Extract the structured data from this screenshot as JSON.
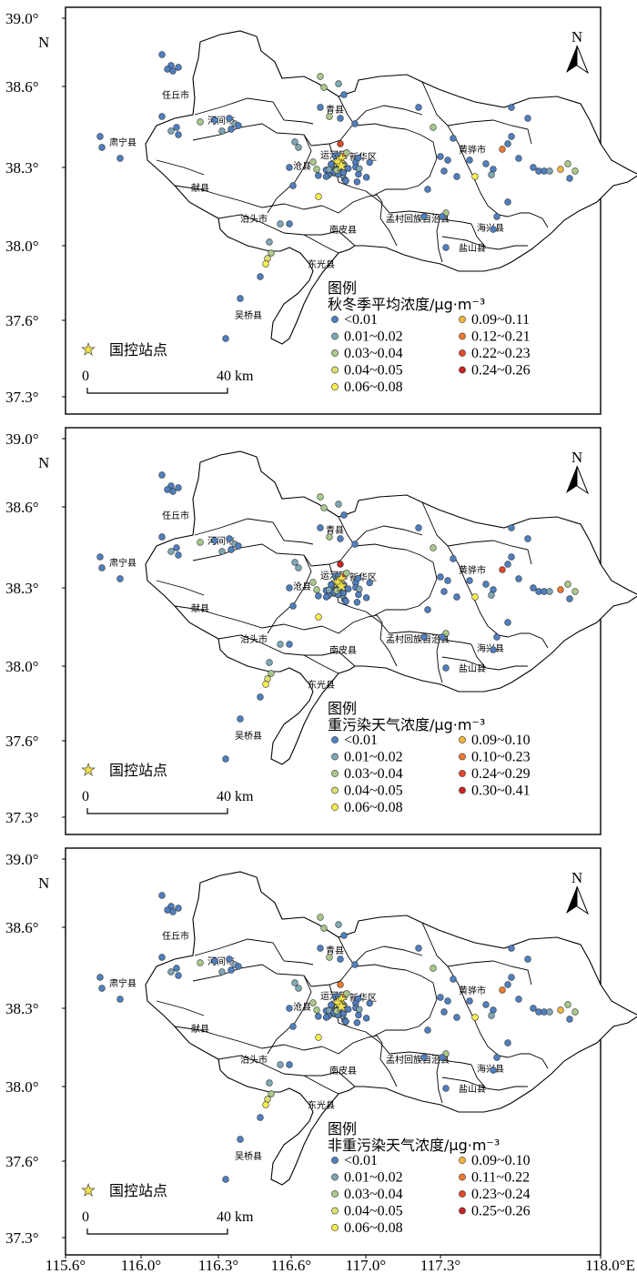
{
  "map": {
    "x_ticks": [
      "115.6°",
      "116.0°",
      "116.3°",
      "116.6°",
      "117.0°",
      "117.3°",
      "118.0°E"
    ],
    "y_ticks": [
      "39.0°",
      "38.6°",
      "38.3°",
      "38.0°",
      "37.6°",
      "37.3°"
    ],
    "north_label": "N",
    "n_axis_label": "N",
    "scale_label": "40 km",
    "scale_zero": "0",
    "station_label": "国控站点",
    "county_labels": [
      "任丘市",
      "河间市",
      "肃宁县",
      "献县",
      "泊头市",
      "东光县",
      "吴桥县",
      "青县",
      "沧县",
      "运河区",
      "新华区",
      "南皮县",
      "孟村回族自治县",
      "黄骅市",
      "海兴县",
      "盐山县"
    ]
  },
  "panels": [
    {
      "legend_title": "图例",
      "legend_subtitle": "秋冬季平均浓度/μg·m⁻³",
      "legend": [
        {
          "label": "<0.01",
          "color": "#4f7fbf"
        },
        {
          "label": "0.01~0.02",
          "color": "#7fa7b5"
        },
        {
          "label": "0.03~0.04",
          "color": "#a9c88b"
        },
        {
          "label": "0.04~0.05",
          "color": "#dcdf6e"
        },
        {
          "label": "0.06~0.08",
          "color": "#f8ee4d"
        },
        {
          "label": "0.09~0.11",
          "color": "#f6b53c"
        },
        {
          "label": "0.12~0.21",
          "color": "#ee7a2e"
        },
        {
          "label": "0.22~0.23",
          "color": "#e1492a"
        },
        {
          "label": "0.24~0.26",
          "color": "#c92323"
        }
      ]
    },
    {
      "legend_title": "图例",
      "legend_subtitle": "重污染天气浓度/μg·m⁻³",
      "legend": [
        {
          "label": "<0.01",
          "color": "#4f7fbf"
        },
        {
          "label": "0.01~0.02",
          "color": "#7fa7b5"
        },
        {
          "label": "0.03~0.04",
          "color": "#a9c88b"
        },
        {
          "label": "0.04~0.05",
          "color": "#dcdf6e"
        },
        {
          "label": "0.06~0.08",
          "color": "#f8ee4d"
        },
        {
          "label": "0.09~0.10",
          "color": "#f6b53c"
        },
        {
          "label": "0.10~0.23",
          "color": "#ee7a2e"
        },
        {
          "label": "0.24~0.29",
          "color": "#e1492a"
        },
        {
          "label": "0.30~0.41",
          "color": "#c92323"
        }
      ]
    },
    {
      "legend_title": "图例",
      "legend_subtitle": "非重污染天气浓度/μg·m⁻³",
      "legend": [
        {
          "label": "<0.01",
          "color": "#4f7fbf"
        },
        {
          "label": "0.01~0.02",
          "color": "#7fa7b5"
        },
        {
          "label": "0.03~0.04",
          "color": "#a9c88b"
        },
        {
          "label": "0.04~0.05",
          "color": "#dcdf6e"
        },
        {
          "label": "0.06~0.08",
          "color": "#f8ee4d"
        },
        {
          "label": "0.09~0.10",
          "color": "#f6b53c"
        },
        {
          "label": "0.11~0.22",
          "color": "#ee7a2e"
        },
        {
          "label": "0.23~0.24",
          "color": "#e1492a"
        },
        {
          "label": "0.25~0.26",
          "color": "#c92323"
        }
      ]
    }
  ]
}
